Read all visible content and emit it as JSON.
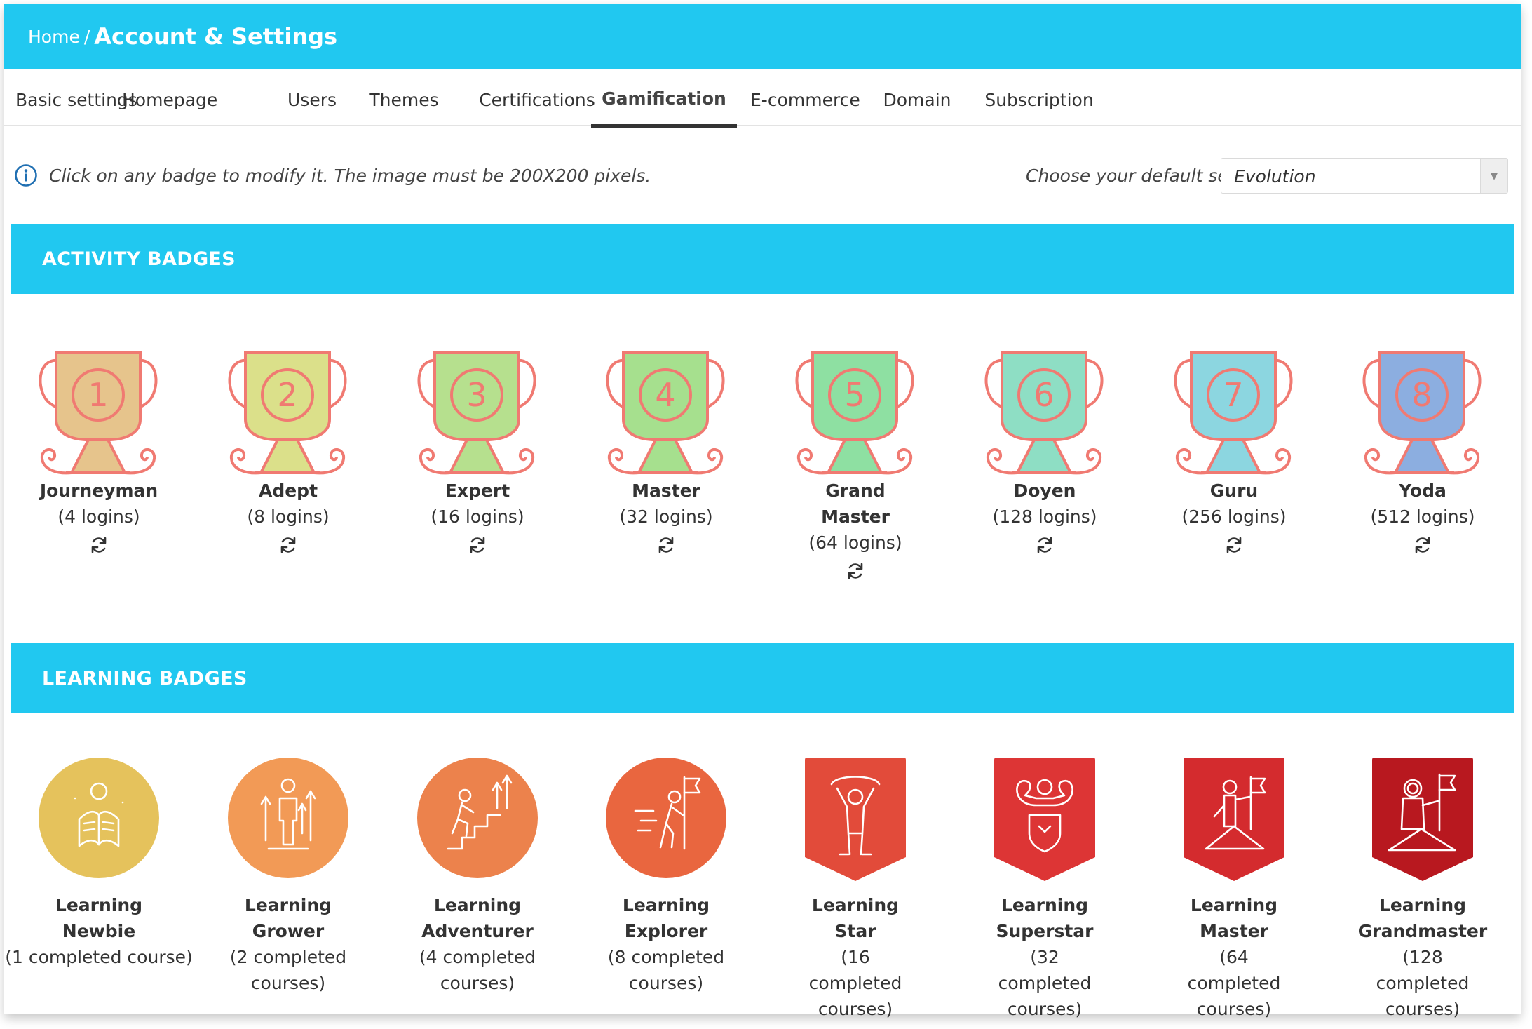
{
  "header": {
    "breadcrumb_home": "Home",
    "breadcrumb_sep": "/",
    "title": "Account & Settings",
    "color": "#21c8f0"
  },
  "tabs": [
    {
      "label": "Basic settings"
    },
    {
      "label": "Homepage"
    },
    {
      "label": "Users"
    },
    {
      "label": "Themes"
    },
    {
      "label": "Certifications"
    },
    {
      "label": "Gamification",
      "active": true
    },
    {
      "label": "E-commerce"
    },
    {
      "label": "Domain"
    },
    {
      "label": "Subscription"
    }
  ],
  "info": {
    "text": "Click on any badge to modify it. The image must be 200X200 pixels.",
    "icon": "info-icon"
  },
  "default_set": {
    "label": "Choose your default set",
    "value": "Evolution"
  },
  "activity": {
    "title": "ACTIVITY BADGES",
    "badges": [
      {
        "number": "1",
        "name": "Journeyman",
        "desc": "(4 logins)",
        "color": "#e6c48c"
      },
      {
        "number": "2",
        "name": "Adept",
        "desc": "(8 logins)",
        "color": "#dbe08a"
      },
      {
        "number": "3",
        "name": "Expert",
        "desc": "(16 logins)",
        "color": "#b6e08e"
      },
      {
        "number": "4",
        "name": "Master",
        "desc": "(32 logins)",
        "color": "#a6e08e"
      },
      {
        "number": "5",
        "name": "Grand Master",
        "desc": "(64 logins)",
        "color": "#8ee0a2"
      },
      {
        "number": "6",
        "name": "Doyen",
        "desc": "(128 logins)",
        "color": "#8edec4"
      },
      {
        "number": "7",
        "name": "Guru",
        "desc": "(256 logins)",
        "color": "#8cd6e0"
      },
      {
        "number": "8",
        "name": "Yoda",
        "desc": "(512 logins)",
        "color": "#8caee0"
      }
    ]
  },
  "learning": {
    "title": "LEARNING BADGES",
    "badges": [
      {
        "name": "Learning Newbie",
        "desc": "(1 completed course)",
        "color": "#e5c25c",
        "shape": "circle",
        "icon": "reading-person-icon"
      },
      {
        "name": "Learning Grower",
        "desc": "(2 completed courses)",
        "color": "#f29a56",
        "shape": "circle",
        "icon": "growing-person-icon"
      },
      {
        "name": "Learning Adventurer",
        "desc": "(4 completed courses)",
        "color": "#ec824c",
        "shape": "circle",
        "icon": "climbing-stairs-icon"
      },
      {
        "name": "Learning Explorer",
        "desc": "(8 completed courses)",
        "color": "#e9663f",
        "shape": "circle",
        "icon": "explorer-flag-icon"
      },
      {
        "name": "Learning Star",
        "desc": "(16 completed courses)",
        "color": "#e24b3a",
        "shape": "shield",
        "icon": "star-person-icon"
      },
      {
        "name": "Learning Superstar",
        "desc": "(32 completed courses)",
        "color": "#dd3535",
        "shape": "shield",
        "icon": "strong-person-icon"
      },
      {
        "name": "Learning Master",
        "desc": "(64 completed courses)",
        "color": "#d42b2e",
        "shape": "shield",
        "icon": "summit-flag-icon"
      },
      {
        "name": "Learning Grandmaster",
        "desc": "(128 completed courses)",
        "color": "#b8181f",
        "shape": "shield",
        "icon": "astronaut-flag-icon"
      }
    ]
  }
}
